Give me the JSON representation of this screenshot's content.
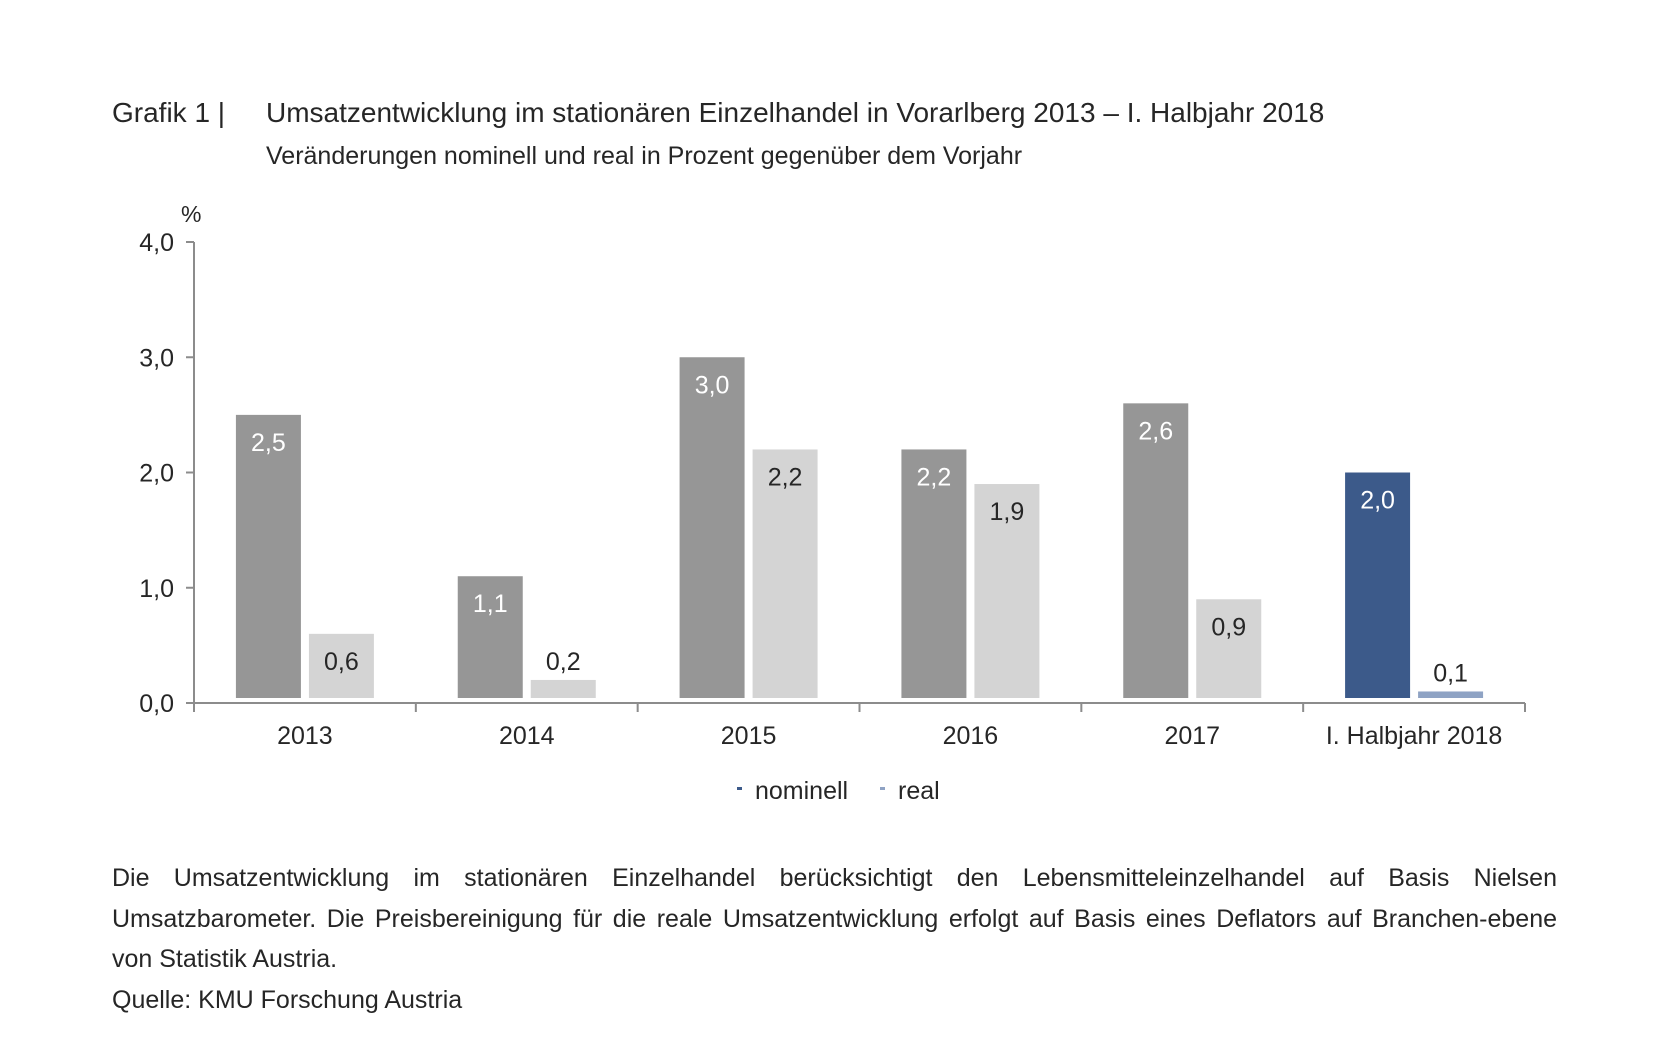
{
  "chart_data": {
    "type": "bar",
    "label": "Grafik 1 |",
    "title": "Umsatzentwicklung im stationären Einzelhandel in Vorarlberg 2013 – I. Halbjahr 2018",
    "subtitle": "Veränderungen nominell und real in Prozent gegenüber dem Vorjahr",
    "ylabel": "%",
    "xlabel": "",
    "ylim": [
      0,
      4
    ],
    "yticks": [
      "0,0",
      "1,0",
      "2,0",
      "3,0",
      "4,0"
    ],
    "ytick_values": [
      0,
      1,
      2,
      3,
      4
    ],
    "categories": [
      "2013",
      "2014",
      "2015",
      "2016",
      "2017",
      "I. Halbjahr 2018"
    ],
    "series": [
      {
        "name": "nominell",
        "values": [
          2.5,
          1.1,
          3.0,
          2.2,
          2.6,
          2.0
        ],
        "labels": [
          "2,5",
          "1,1",
          "3,0",
          "2,2",
          "2,6",
          "2,0"
        ],
        "color": "#969696",
        "highlight_color": "#3c5a8a",
        "label_color": "#ffffff"
      },
      {
        "name": "real",
        "values": [
          0.6,
          0.2,
          2.2,
          1.9,
          0.9,
          0.1
        ],
        "labels": [
          "0,6",
          "0,2",
          "2,2",
          "1,9",
          "0,9",
          "0,1"
        ],
        "color": "#d4d4d4",
        "highlight_color": "#8fa3c4",
        "label_color": "#262626"
      }
    ],
    "legend": {
      "placement": "bottom-center",
      "marker_colors": [
        "#3c5a8a",
        "#8fa3c4"
      ]
    },
    "grid": false
  },
  "footnote": {
    "text": "Die Umsatzentwicklung im stationären Einzelhandel berücksichtigt den Lebensmitteleinzelhandel auf Basis Nielsen Umsatzbarometer. Die Preisbereinigung für die reale Umsatzentwicklung erfolgt auf Basis eines Deflators auf Branchen-ebene von Statistik Austria.",
    "source": "Quelle: KMU Forschung Austria"
  }
}
